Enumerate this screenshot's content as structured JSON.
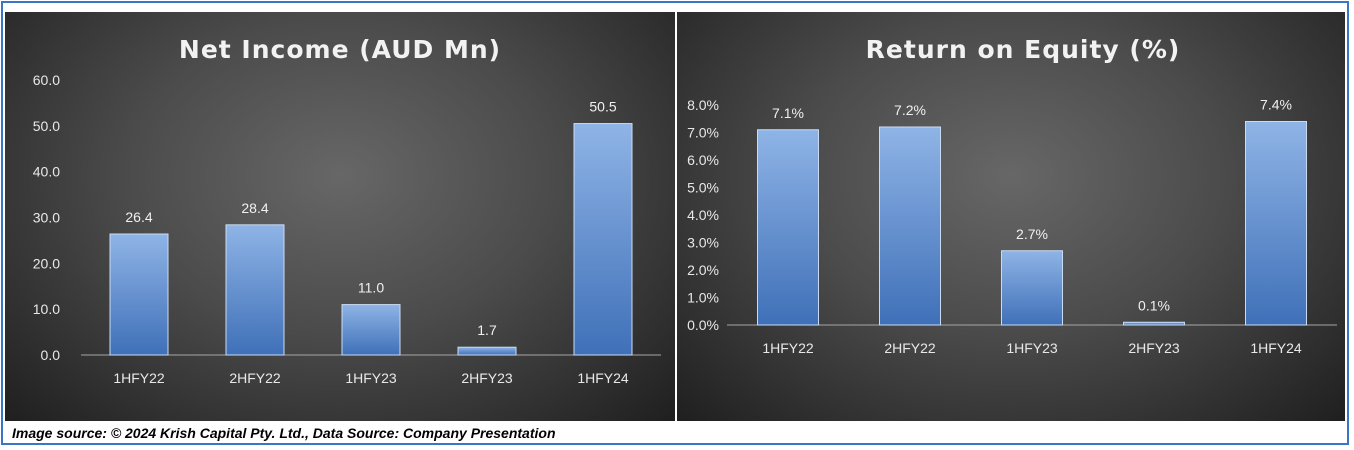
{
  "colors": {
    "bar_top": "#8fb4e6",
    "bar_bottom": "#3f70b8",
    "bar_edge": "#c9dbf3",
    "axis": "#a6a6a6"
  },
  "caption": "Image source: © 2024 Krish Capital Pty. Ltd., Data Source: Company Presentation",
  "chart_data": [
    {
      "type": "bar",
      "title": "Net Income (AUD Mn)",
      "categories": [
        "1HFY22",
        "2HFY22",
        "1HFY23",
        "2HFY23",
        "1HFY24"
      ],
      "values": [
        26.4,
        28.4,
        11.0,
        1.7,
        50.5
      ],
      "data_labels": [
        "26.4",
        "28.4",
        "11.0",
        "1.7",
        "50.5"
      ],
      "ylim": [
        0,
        60
      ],
      "yticks": [
        0,
        10,
        20,
        30,
        40,
        50,
        60
      ],
      "ytick_labels": [
        "0.0",
        "10.0",
        "20.0",
        "30.0",
        "40.0",
        "50.0",
        "60.0"
      ],
      "xlabel": "",
      "ylabel": "",
      "grid": false,
      "legend": "none"
    },
    {
      "type": "bar",
      "title": "Return on Equity (%)",
      "categories": [
        "1HFY22",
        "2HFY22",
        "1HFY23",
        "2HFY23",
        "1HFY24"
      ],
      "values": [
        7.1,
        7.2,
        2.7,
        0.1,
        7.4
      ],
      "data_labels": [
        "7.1%",
        "7.2%",
        "2.7%",
        "0.1%",
        "7.4%"
      ],
      "ylim": [
        0,
        8
      ],
      "yticks": [
        0,
        1,
        2,
        3,
        4,
        5,
        6,
        7,
        8
      ],
      "ytick_labels": [
        "0.0%",
        "1.0%",
        "2.0%",
        "3.0%",
        "4.0%",
        "5.0%",
        "6.0%",
        "7.0%",
        "8.0%"
      ],
      "xlabel": "",
      "ylabel": "",
      "grid": false,
      "legend": "none"
    }
  ]
}
